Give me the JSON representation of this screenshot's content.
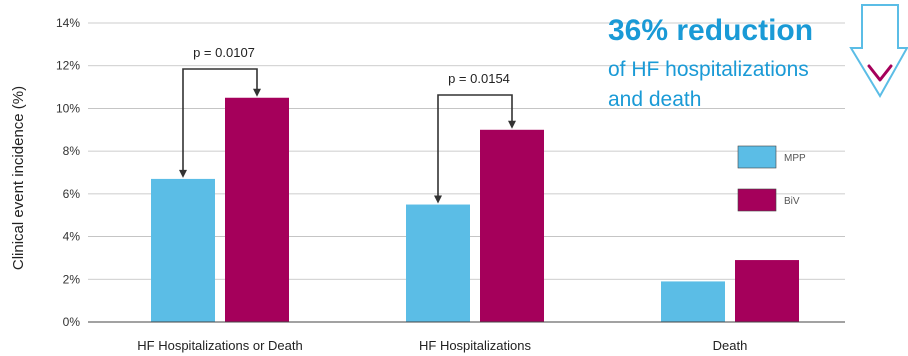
{
  "chart_data": {
    "type": "bar",
    "ylabel": "Clinical event incidence (%)",
    "ylim": [
      0,
      14
    ],
    "yticks": [
      "0%",
      "2%",
      "4%",
      "6%",
      "8%",
      "10%",
      "12%",
      "14%"
    ],
    "categories": [
      "HF Hospitalizations or Death",
      "HF Hospitalizations",
      "Death"
    ],
    "series": [
      {
        "name": "MPP",
        "color": "#5bbde6",
        "values": [
          6.7,
          5.5,
          1.9
        ]
      },
      {
        "name": "BiV",
        "color": "#a5005b",
        "values": [
          10.5,
          9.0,
          2.9
        ]
      }
    ],
    "grid": true,
    "legend_position": "right",
    "annotations": [
      {
        "text": "p = 0.0107",
        "category": 0
      },
      {
        "text": "p = 0.0154",
        "category": 1
      }
    ]
  },
  "headline": {
    "title": "36% reduction",
    "line1": "of HF hospitalizations",
    "line2": "and death",
    "color": "#1a9ad6",
    "arrow_color": "#5bbde6",
    "check_color": "#a5005b"
  }
}
